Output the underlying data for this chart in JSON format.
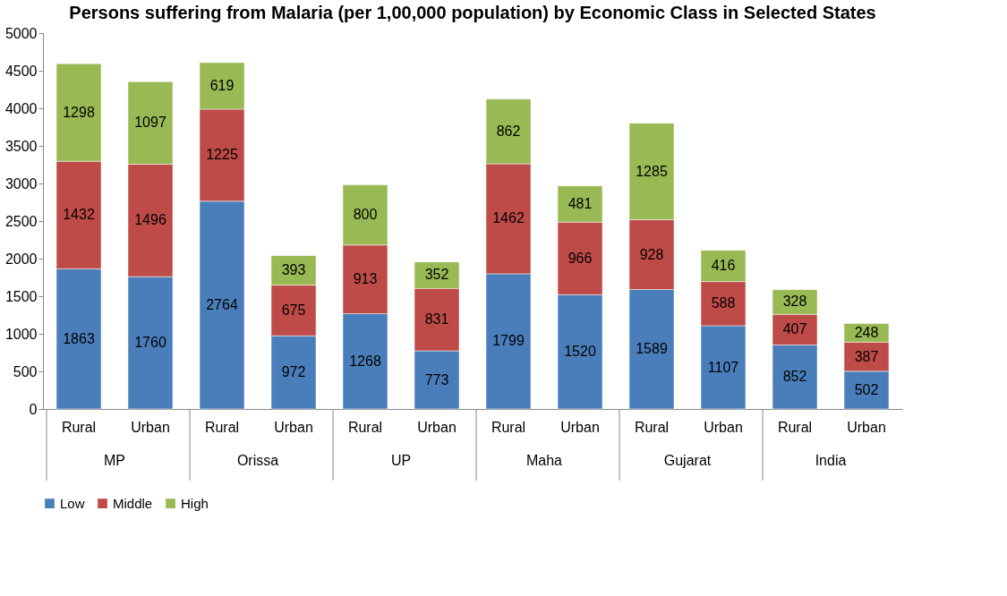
{
  "chart_data": {
    "type": "bar",
    "title": "Persons suffering from Malaria (per 1,00,000 population) by Economic Class  in Selected States",
    "categories": [
      "Rural",
      "Urban",
      "Rural",
      "Urban",
      "Rural",
      "Urban",
      "Rural",
      "Urban",
      "Rural",
      "Urban",
      "Rural",
      "Urban"
    ],
    "annotations": [
      "MP",
      "Orissa",
      "UP",
      "Maha",
      "Gujarat",
      "India"
    ],
    "stacked": true,
    "series": [
      {
        "name": "Low",
        "color": "#4a7ebb",
        "values": [
          1863,
          1760,
          2764,
          972,
          1268,
          773,
          1799,
          1520,
          1589,
          1107,
          852,
          502
        ]
      },
      {
        "name": "Middle",
        "color": "#be4b48",
        "values": [
          1432,
          1496,
          1225,
          675,
          913,
          831,
          1462,
          966,
          928,
          588,
          407,
          387
        ]
      },
      {
        "name": "High",
        "color": "#98b954",
        "values": [
          1298,
          1097,
          619,
          393,
          800,
          352,
          862,
          481,
          1285,
          416,
          328,
          248
        ]
      }
    ],
    "ylim": [
      0,
      5000
    ],
    "yticks": [
      0,
      500,
      1000,
      1500,
      2000,
      2500,
      3000,
      3500,
      4000,
      4500,
      5000
    ],
    "data_labels": true,
    "grid": false,
    "legend": "bottom"
  }
}
